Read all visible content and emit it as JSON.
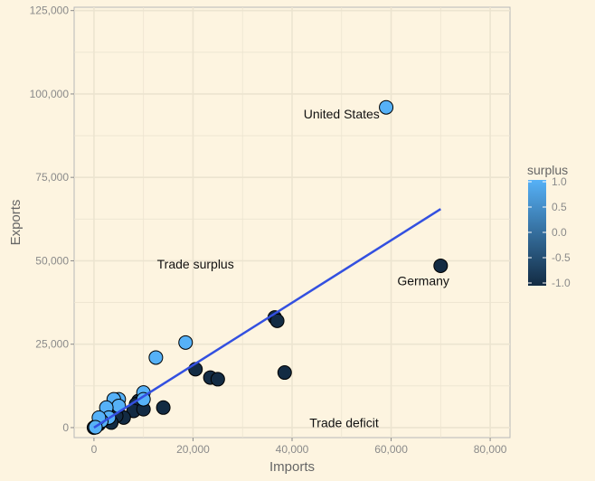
{
  "chart_data": {
    "type": "scatter",
    "xlabel": "Imports",
    "ylabel": "Exports",
    "xlim": [
      -4000,
      84000
    ],
    "ylim": [
      -3000,
      126000
    ],
    "x_ticks": [
      0,
      20000,
      40000,
      60000,
      80000
    ],
    "x_tick_labels": [
      "0",
      "20,000",
      "40,000",
      "60,000",
      "80,000"
    ],
    "y_ticks": [
      0,
      25000,
      50000,
      75000,
      100000,
      125000
    ],
    "y_tick_labels": [
      "0",
      "25,000",
      "50,000",
      "75,000",
      "100,000",
      "125,000"
    ],
    "grid": true,
    "points": [
      {
        "x": 59000,
        "y": 96000,
        "surplus": 1.0
      },
      {
        "x": 70000,
        "y": 48500,
        "surplus": -1.0
      },
      {
        "x": 36500,
        "y": 33000,
        "surplus": -1.0
      },
      {
        "x": 37000,
        "y": 32000,
        "surplus": -1.0
      },
      {
        "x": 38500,
        "y": 16500,
        "surplus": -1.0
      },
      {
        "x": 18500,
        "y": 25500,
        "surplus": 1.0
      },
      {
        "x": 12500,
        "y": 21000,
        "surplus": 1.0
      },
      {
        "x": 20500,
        "y": 17500,
        "surplus": -1.0
      },
      {
        "x": 23500,
        "y": 15000,
        "surplus": -1.0
      },
      {
        "x": 25000,
        "y": 14500,
        "surplus": -1.0
      },
      {
        "x": 14000,
        "y": 6000,
        "surplus": -1.0
      },
      {
        "x": 10000,
        "y": 10500,
        "surplus": 1.0
      },
      {
        "x": 10000,
        "y": 8500,
        "surplus": 1.0
      },
      {
        "x": 9000,
        "y": 8000,
        "surplus": -1.0
      },
      {
        "x": 8500,
        "y": 7000,
        "surplus": -1.0
      },
      {
        "x": 8000,
        "y": 5000,
        "surplus": -1.0
      },
      {
        "x": 10000,
        "y": 5500,
        "surplus": -1.0
      },
      {
        "x": 5000,
        "y": 8500,
        "surplus": 1.0
      },
      {
        "x": 4000,
        "y": 8500,
        "surplus": 1.0
      },
      {
        "x": 5000,
        "y": 6500,
        "surplus": 1.0
      },
      {
        "x": 2500,
        "y": 6000,
        "surplus": 1.0
      },
      {
        "x": 6000,
        "y": 3000,
        "surplus": -1.0
      },
      {
        "x": 4500,
        "y": 3500,
        "surplus": -1.0
      },
      {
        "x": 3500,
        "y": 1500,
        "surplus": -1.0
      },
      {
        "x": 3000,
        "y": 3000,
        "surplus": 1.0
      },
      {
        "x": 2000,
        "y": 2500,
        "surplus": -1.0
      },
      {
        "x": 1500,
        "y": 2000,
        "surplus": 1.0
      },
      {
        "x": 1000,
        "y": 3000,
        "surplus": 1.0
      },
      {
        "x": 1000,
        "y": 1000,
        "surplus": -1.0
      },
      {
        "x": 500,
        "y": 500,
        "surplus": -1.0
      },
      {
        "x": 200,
        "y": 200,
        "surplus": -1.0
      },
      {
        "x": 0,
        "y": 0,
        "surplus": -1.0
      },
      {
        "x": 300,
        "y": 100,
        "surplus": 1.0
      }
    ],
    "trend_line": {
      "x": [
        0,
        70000
      ],
      "y": [
        0,
        65500
      ]
    },
    "annotations": [
      {
        "text": "United States",
        "x": 50000,
        "y": 94000
      },
      {
        "text": "Germany",
        "x": 66500,
        "y": 44000
      },
      {
        "text": "Trade surplus",
        "x": 20500,
        "y": 49000
      },
      {
        "text": "Trade deficit",
        "x": 50500,
        "y": 1500
      }
    ],
    "legend": {
      "title": "surplus",
      "position": "right",
      "ticks": [
        1.0,
        0.5,
        0.0,
        -0.5,
        -1.0
      ],
      "tick_labels": [
        "1.0",
        "0.5",
        "0.0",
        "-0.5",
        "-1.0"
      ],
      "color_low": "#132b43",
      "color_high": "#56b1f7"
    },
    "colors": {
      "background": "#fdf4e0",
      "grid": "#ece4d0",
      "trend_line": "#3350e0"
    }
  }
}
